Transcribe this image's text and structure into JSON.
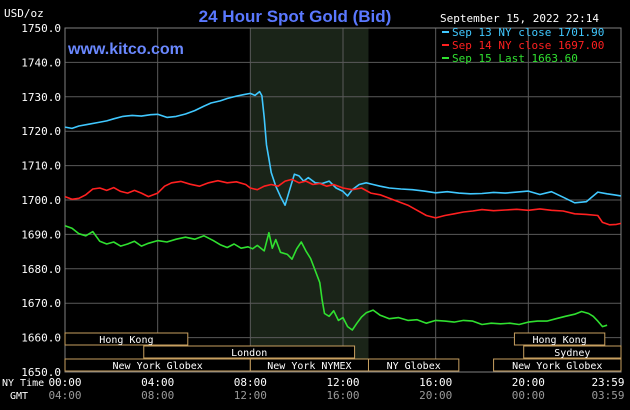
{
  "chart_data": {
    "type": "line",
    "title": "24 Hour Spot Gold (Bid)",
    "watermark": "www.kitco.com",
    "timestamp": "September 15, 2022 22:14",
    "ylabel": "USD/oz",
    "ylim": [
      1650,
      1750
    ],
    "yticks": [
      "1750.0",
      "1740.0",
      "1730.0",
      "1720.0",
      "1710.0",
      "1700.0",
      "1690.0",
      "1680.0",
      "1670.0",
      "1660.0",
      "1650.0"
    ],
    "ny_time_label": "NY Time",
    "gmt_label": "GMT",
    "ny_ticks": [
      "00:00",
      "04:00",
      "08:00",
      "12:00",
      "16:00",
      "20:00",
      "23:59"
    ],
    "gmt_ticks": [
      "04:00",
      "08:00",
      "12:00",
      "16:00",
      "20:00",
      "00:00",
      "03:59"
    ],
    "grid": true,
    "legend_position": "top-right",
    "highlight_hours": [
      8,
      13.1
    ],
    "colors": {
      "background": "#000000",
      "grid": "#5a5a5a",
      "highlight": "#1a2418",
      "title": "#5a78ff",
      "watermark": "#6a88ff",
      "axis_text": "#ffffff",
      "session_text": "#ffffff",
      "session_border": "#c8a060"
    },
    "sessions": [
      {
        "label": "Hong Kong",
        "start": 0,
        "end": 5.3,
        "row": 0
      },
      {
        "label": "Hong Kong",
        "start": 19.4,
        "end": 23.3,
        "row": 0
      },
      {
        "label": "London",
        "start": 3.4,
        "end": 12.5,
        "row": 1
      },
      {
        "label": "Sydney",
        "start": 19.8,
        "end": 24,
        "row": 1
      },
      {
        "label": "New York Globex",
        "start": 0,
        "end": 8,
        "row": 2
      },
      {
        "label": "New York NYMEX",
        "start": 8,
        "end": 13.1,
        "row": 2
      },
      {
        "label": "NY Globex",
        "start": 13.1,
        "end": 17,
        "row": 2
      },
      {
        "label": "New York Globex",
        "start": 18.5,
        "end": 24,
        "row": 2
      }
    ],
    "series": [
      {
        "name": "Sep 13 NY close 1701.90",
        "color": "#40c8ff",
        "points": [
          [
            0,
            1721.2
          ],
          [
            0.3,
            1720.8
          ],
          [
            0.6,
            1721.5
          ],
          [
            1.0,
            1722.0
          ],
          [
            1.4,
            1722.5
          ],
          [
            1.8,
            1723.0
          ],
          [
            2.1,
            1723.6
          ],
          [
            2.5,
            1724.3
          ],
          [
            2.9,
            1724.6
          ],
          [
            3.3,
            1724.4
          ],
          [
            3.7,
            1724.8
          ],
          [
            4.0,
            1724.9
          ],
          [
            4.4,
            1724.0
          ],
          [
            4.8,
            1724.3
          ],
          [
            5.2,
            1725.0
          ],
          [
            5.6,
            1726.0
          ],
          [
            6.0,
            1727.3
          ],
          [
            6.3,
            1728.2
          ],
          [
            6.7,
            1728.8
          ],
          [
            7.0,
            1729.5
          ],
          [
            7.4,
            1730.2
          ],
          [
            7.7,
            1730.6
          ],
          [
            8.0,
            1731.0
          ],
          [
            8.2,
            1730.4
          ],
          [
            8.4,
            1731.5
          ],
          [
            8.5,
            1730.3
          ],
          [
            8.6,
            1724.0
          ],
          [
            8.7,
            1716.0
          ],
          [
            8.8,
            1712.0
          ],
          [
            8.9,
            1708.0
          ],
          [
            9.1,
            1704.0
          ],
          [
            9.3,
            1701.0
          ],
          [
            9.5,
            1698.5
          ],
          [
            9.7,
            1703.0
          ],
          [
            9.9,
            1707.5
          ],
          [
            10.1,
            1707.0
          ],
          [
            10.3,
            1705.5
          ],
          [
            10.5,
            1706.5
          ],
          [
            10.8,
            1705.0
          ],
          [
            11.1,
            1704.8
          ],
          [
            11.4,
            1705.5
          ],
          [
            11.7,
            1703.5
          ],
          [
            12.0,
            1702.5
          ],
          [
            12.2,
            1701.2
          ],
          [
            12.4,
            1703.0
          ],
          [
            12.7,
            1704.5
          ],
          [
            13.0,
            1705.0
          ],
          [
            13.3,
            1704.5
          ],
          [
            13.6,
            1704.0
          ],
          [
            14.0,
            1703.5
          ],
          [
            14.5,
            1703.2
          ],
          [
            15.0,
            1703.0
          ],
          [
            15.5,
            1702.6
          ],
          [
            16.0,
            1702.1
          ],
          [
            16.5,
            1702.4
          ],
          [
            17.0,
            1702.0
          ],
          [
            17.5,
            1701.8
          ],
          [
            18.0,
            1701.9
          ],
          [
            18.5,
            1702.2
          ],
          [
            19.0,
            1702.0
          ],
          [
            19.5,
            1702.3
          ],
          [
            20.0,
            1702.6
          ],
          [
            20.5,
            1701.6
          ],
          [
            21.0,
            1702.4
          ],
          [
            21.5,
            1700.8
          ],
          [
            22.0,
            1699.2
          ],
          [
            22.5,
            1699.5
          ],
          [
            23.0,
            1702.3
          ],
          [
            23.4,
            1701.8
          ],
          [
            23.7,
            1701.5
          ],
          [
            24.0,
            1701.2
          ]
        ]
      },
      {
        "name": "Sep 14 NY close 1697.00",
        "color": "#ff2020",
        "points": [
          [
            0,
            1701.0
          ],
          [
            0.3,
            1700.2
          ],
          [
            0.6,
            1700.5
          ],
          [
            0.9,
            1701.5
          ],
          [
            1.2,
            1703.2
          ],
          [
            1.5,
            1703.5
          ],
          [
            1.8,
            1702.8
          ],
          [
            2.1,
            1703.6
          ],
          [
            2.4,
            1702.5
          ],
          [
            2.7,
            1702.0
          ],
          [
            3.0,
            1702.8
          ],
          [
            3.3,
            1702.0
          ],
          [
            3.6,
            1701.0
          ],
          [
            4.0,
            1702.0
          ],
          [
            4.3,
            1704.0
          ],
          [
            4.6,
            1705.0
          ],
          [
            5.0,
            1705.4
          ],
          [
            5.4,
            1704.6
          ],
          [
            5.8,
            1704.0
          ],
          [
            6.2,
            1705.0
          ],
          [
            6.6,
            1705.6
          ],
          [
            7.0,
            1705.0
          ],
          [
            7.4,
            1705.3
          ],
          [
            7.8,
            1704.5
          ],
          [
            8.0,
            1703.5
          ],
          [
            8.3,
            1703.0
          ],
          [
            8.6,
            1704.0
          ],
          [
            8.9,
            1704.5
          ],
          [
            9.2,
            1704.0
          ],
          [
            9.5,
            1705.5
          ],
          [
            9.8,
            1706.0
          ],
          [
            10.1,
            1705.0
          ],
          [
            10.4,
            1705.5
          ],
          [
            10.7,
            1704.5
          ],
          [
            11.0,
            1704.8
          ],
          [
            11.3,
            1704.0
          ],
          [
            11.6,
            1704.5
          ],
          [
            12.0,
            1703.5
          ],
          [
            12.4,
            1703.0
          ],
          [
            12.8,
            1703.5
          ],
          [
            13.2,
            1702.0
          ],
          [
            13.6,
            1701.5
          ],
          [
            14.0,
            1700.5
          ],
          [
            14.4,
            1699.5
          ],
          [
            14.8,
            1698.5
          ],
          [
            15.2,
            1697.0
          ],
          [
            15.6,
            1695.5
          ],
          [
            16.0,
            1694.8
          ],
          [
            16.4,
            1695.5
          ],
          [
            16.8,
            1696.0
          ],
          [
            17.2,
            1696.5
          ],
          [
            17.6,
            1696.8
          ],
          [
            18.0,
            1697.2
          ],
          [
            18.5,
            1696.9
          ],
          [
            19.0,
            1697.1
          ],
          [
            19.5,
            1697.3
          ],
          [
            20.0,
            1697.0
          ],
          [
            20.5,
            1697.4
          ],
          [
            21.0,
            1697.0
          ],
          [
            21.5,
            1696.8
          ],
          [
            22.0,
            1696.0
          ],
          [
            22.5,
            1695.8
          ],
          [
            23.0,
            1695.5
          ],
          [
            23.2,
            1693.5
          ],
          [
            23.5,
            1692.8
          ],
          [
            23.8,
            1692.9
          ],
          [
            24.0,
            1693.2
          ]
        ]
      },
      {
        "name": "Sep 15 Last 1663.60",
        "color": "#30e030",
        "points": [
          [
            0,
            1692.5
          ],
          [
            0.3,
            1691.8
          ],
          [
            0.6,
            1690.2
          ],
          [
            0.9,
            1689.6
          ],
          [
            1.2,
            1690.8
          ],
          [
            1.5,
            1688.0
          ],
          [
            1.8,
            1687.2
          ],
          [
            2.1,
            1687.8
          ],
          [
            2.4,
            1686.6
          ],
          [
            2.7,
            1687.2
          ],
          [
            3.0,
            1688.0
          ],
          [
            3.3,
            1686.6
          ],
          [
            3.6,
            1687.4
          ],
          [
            4.0,
            1688.2
          ],
          [
            4.4,
            1687.8
          ],
          [
            4.8,
            1688.6
          ],
          [
            5.2,
            1689.2
          ],
          [
            5.6,
            1688.6
          ],
          [
            6.0,
            1689.6
          ],
          [
            6.4,
            1688.2
          ],
          [
            6.7,
            1687.0
          ],
          [
            7.0,
            1686.2
          ],
          [
            7.3,
            1687.2
          ],
          [
            7.6,
            1686.0
          ],
          [
            7.9,
            1686.4
          ],
          [
            8.1,
            1685.8
          ],
          [
            8.3,
            1686.8
          ],
          [
            8.6,
            1685.2
          ],
          [
            8.8,
            1690.5
          ],
          [
            8.95,
            1686.0
          ],
          [
            9.1,
            1688.5
          ],
          [
            9.3,
            1684.8
          ],
          [
            9.6,
            1684.2
          ],
          [
            9.8,
            1682.8
          ],
          [
            10.0,
            1685.8
          ],
          [
            10.2,
            1687.8
          ],
          [
            10.4,
            1685.2
          ],
          [
            10.6,
            1683.0
          ],
          [
            10.8,
            1679.5
          ],
          [
            11.0,
            1676.0
          ],
          [
            11.1,
            1671.0
          ],
          [
            11.2,
            1667.0
          ],
          [
            11.4,
            1666.2
          ],
          [
            11.6,
            1667.8
          ],
          [
            11.8,
            1665.0
          ],
          [
            12.0,
            1665.8
          ],
          [
            12.2,
            1663.2
          ],
          [
            12.4,
            1662.2
          ],
          [
            12.6,
            1664.2
          ],
          [
            12.8,
            1666.0
          ],
          [
            13.0,
            1667.2
          ],
          [
            13.3,
            1668.0
          ],
          [
            13.6,
            1666.5
          ],
          [
            14.0,
            1665.5
          ],
          [
            14.4,
            1665.8
          ],
          [
            14.8,
            1665.0
          ],
          [
            15.2,
            1665.2
          ],
          [
            15.6,
            1664.2
          ],
          [
            16.0,
            1665.0
          ],
          [
            16.4,
            1664.8
          ],
          [
            16.8,
            1664.5
          ],
          [
            17.2,
            1665.0
          ],
          [
            17.6,
            1664.8
          ],
          [
            18.0,
            1663.8
          ],
          [
            18.4,
            1664.2
          ],
          [
            18.8,
            1664.0
          ],
          [
            19.2,
            1664.2
          ],
          [
            19.6,
            1663.8
          ],
          [
            20.0,
            1664.5
          ],
          [
            20.4,
            1664.8
          ],
          [
            20.8,
            1664.8
          ],
          [
            21.2,
            1665.5
          ],
          [
            21.6,
            1666.2
          ],
          [
            22.0,
            1666.8
          ],
          [
            22.3,
            1667.6
          ],
          [
            22.6,
            1667.0
          ],
          [
            22.8,
            1666.2
          ],
          [
            23.0,
            1664.8
          ],
          [
            23.2,
            1663.2
          ],
          [
            23.4,
            1663.6
          ]
        ]
      }
    ]
  }
}
